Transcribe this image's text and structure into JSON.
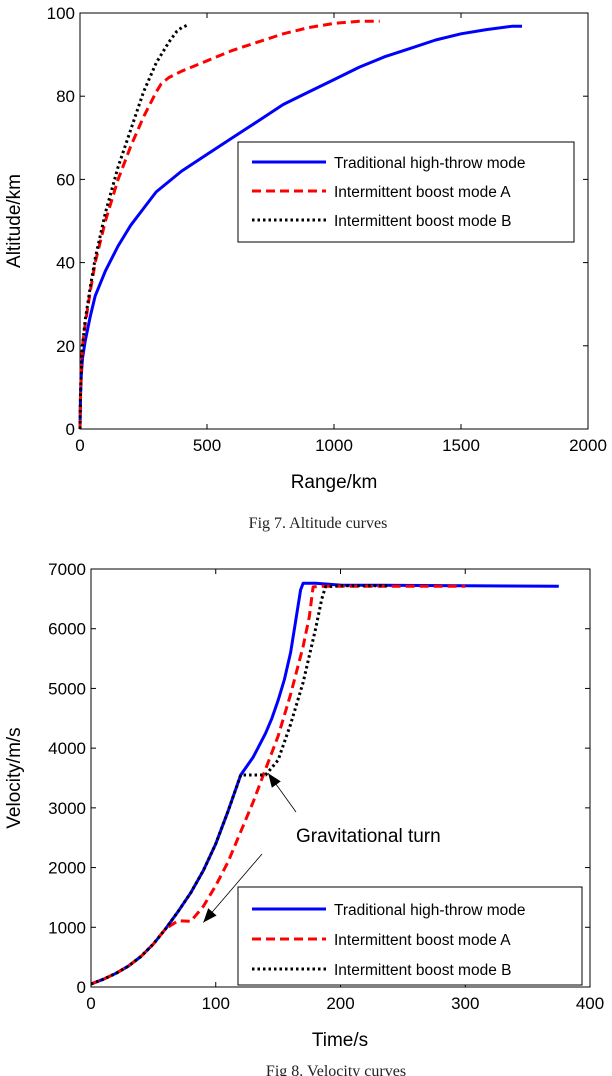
{
  "chart_data": [
    {
      "type": "line",
      "caption": "Fig 7. Altitude curves",
      "xlabel": "Range/km",
      "ylabel": "Altitude/km",
      "xlim": [
        0,
        2000
      ],
      "ylim": [
        0,
        100
      ],
      "xticks": [
        0,
        500,
        1000,
        1500,
        2000
      ],
      "yticks": [
        0,
        20,
        40,
        60,
        80,
        100
      ],
      "grid": false,
      "legend": "upper-right-middle",
      "series": [
        {
          "name": "Traditional high-throw  mode",
          "color": "#0000ff",
          "style": "solid",
          "x": [
            0,
            2,
            5,
            10,
            20,
            40,
            60,
            100,
            150,
            200,
            250,
            300,
            400,
            500,
            600,
            700,
            800,
            900,
            1000,
            1100,
            1200,
            1300,
            1400,
            1500,
            1600,
            1700,
            1740
          ],
          "y": [
            0,
            8,
            13,
            17,
            21,
            27,
            32,
            38,
            44,
            49,
            53,
            57,
            62,
            66,
            70,
            74,
            78,
            81,
            84,
            87,
            89.5,
            91.5,
            93.5,
            95,
            96,
            96.8,
            96.8
          ]
        },
        {
          "name": "Intermittent boost mode A",
          "color": "#ff0000",
          "style": "dashed",
          "x": [
            0,
            2,
            5,
            10,
            20,
            40,
            60,
            100,
            150,
            200,
            250,
            300,
            320,
            350,
            400,
            500,
            600,
            700,
            800,
            900,
            1000,
            1100,
            1180
          ],
          "y": [
            0,
            8,
            15,
            20,
            25,
            33,
            40,
            50,
            60,
            68,
            75,
            81,
            83,
            84.5,
            86,
            88.5,
            91,
            93,
            95,
            96.5,
            97.5,
            98,
            98
          ]
        },
        {
          "name": "Intermittent boost mode B",
          "color": "#000000",
          "style": "dotted",
          "x": [
            0,
            2,
            5,
            10,
            20,
            40,
            60,
            100,
            150,
            200,
            250,
            300,
            350,
            380,
            400,
            420
          ],
          "y": [
            0,
            8,
            15,
            20,
            26,
            34,
            41,
            52,
            63,
            72,
            81,
            88,
            93,
            95.5,
            96.5,
            97
          ]
        }
      ]
    },
    {
      "type": "line",
      "caption": "Fig 8. Velocity curves",
      "xlabel": "Time/s",
      "ylabel": "Velocity/m/s",
      "xlim": [
        0,
        400
      ],
      "ylim": [
        0,
        7000
      ],
      "xticks": [
        0,
        100,
        200,
        300,
        400
      ],
      "yticks": [
        0,
        1000,
        2000,
        3000,
        4000,
        5000,
        6000,
        7000
      ],
      "grid": false,
      "legend": "lower-right",
      "annotation": "Gravitational turn",
      "annotation_targets": [
        [
          142,
          3580
        ],
        [
          90,
          1080
        ]
      ],
      "series": [
        {
          "name": "Traditional high-throw  mode",
          "color": "#0000ff",
          "style": "solid",
          "x": [
            0,
            10,
            20,
            30,
            40,
            50,
            60,
            70,
            80,
            90,
            100,
            110,
            120,
            125,
            130,
            135,
            140,
            145,
            150,
            155,
            160,
            165,
            168,
            170,
            180,
            200,
            300,
            375
          ],
          "y": [
            50,
            130,
            230,
            350,
            510,
            720,
            980,
            1270,
            1580,
            1950,
            2400,
            2950,
            3550,
            3700,
            3850,
            4050,
            4250,
            4500,
            4800,
            5150,
            5600,
            6250,
            6650,
            6760,
            6760,
            6730,
            6720,
            6710
          ]
        },
        {
          "name": "Intermittent boost mode A",
          "color": "#ff0000",
          "style": "dashed",
          "x": [
            0,
            10,
            20,
            30,
            40,
            50,
            60,
            70,
            80,
            90,
            100,
            110,
            120,
            130,
            140,
            150,
            160,
            170,
            175,
            178,
            185,
            200,
            300
          ],
          "y": [
            50,
            130,
            230,
            350,
            510,
            720,
            980,
            1110,
            1100,
            1350,
            1700,
            2100,
            2600,
            3100,
            3650,
            4200,
            4900,
            5700,
            6200,
            6700,
            6710,
            6710,
            6710
          ]
        },
        {
          "name": "Intermittent boost mode B",
          "color": "#000000",
          "style": "dotted",
          "x": [
            0,
            10,
            20,
            30,
            40,
            50,
            60,
            70,
            80,
            90,
            100,
            110,
            120,
            125,
            130,
            140,
            150,
            160,
            170,
            180,
            185,
            188,
            200,
            240
          ],
          "y": [
            50,
            130,
            230,
            350,
            510,
            720,
            980,
            1270,
            1580,
            1950,
            2400,
            2950,
            3550,
            3550,
            3550,
            3550,
            3800,
            4400,
            5100,
            6000,
            6500,
            6700,
            6720,
            6720
          ]
        }
      ]
    }
  ]
}
